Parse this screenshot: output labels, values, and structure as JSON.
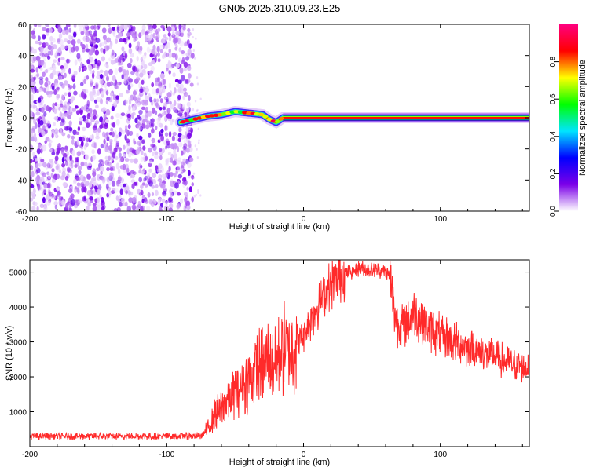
{
  "chart_data": [
    {
      "type": "heatmap",
      "title": "GN05.2025.310.09.23.E25",
      "xlabel": "Height of straight line (km)",
      "ylabel": "Frequency (Hz)",
      "xlim": [
        -200,
        165
      ],
      "ylim": [
        -60,
        60
      ],
      "x_ticks": [
        -200,
        -100,
        0,
        100
      ],
      "x_tick_labels": [
        "-200",
        "-100",
        "0",
        "100"
      ],
      "y_ticks": [
        -60,
        -40,
        -20,
        0,
        20,
        40,
        60
      ],
      "y_tick_labels": [
        "-60",
        "-40",
        "-20",
        "0",
        "20",
        "40",
        "60"
      ],
      "noise_region_x": [
        -200,
        -81
      ],
      "signal_track": {
        "x": [
          -90,
          -80,
          -70,
          -60,
          -50,
          -40,
          -30,
          -25,
          -20,
          -15,
          0,
          50,
          100,
          165
        ],
        "freq": [
          -3,
          -1,
          1,
          2,
          4,
          3,
          2,
          -1,
          -3,
          0,
          0,
          0,
          0,
          0
        ]
      },
      "colorbar": {
        "label": "Normalized spectral amplitude",
        "range": [
          0,
          1
        ],
        "ticks": [
          0.0,
          0.2,
          0.4,
          0.6,
          0.8
        ],
        "tick_labels": [
          "0.0",
          "0.2",
          "0.4",
          "0.6",
          "0.8"
        ],
        "colors": [
          "#ffffff",
          "#7b00e8",
          "#0000ff",
          "#00e5ff",
          "#00ff00",
          "#ffff00",
          "#ff0000",
          "#ff007f"
        ]
      }
    },
    {
      "type": "line",
      "xlabel": "Height of straight line (km)",
      "ylabel": "SNR (10 * v/v)",
      "xlim": [
        -200,
        165
      ],
      "ylim": [
        0,
        5350
      ],
      "x_ticks": [
        -200,
        -100,
        0,
        100
      ],
      "x_tick_labels": [
        "-200",
        "-100",
        "0",
        "100"
      ],
      "y_ticks": [
        1000,
        2000,
        3000,
        4000,
        5000
      ],
      "y_tick_labels": [
        "1000",
        "2000",
        "3000",
        "4000",
        "5000"
      ],
      "series": [
        {
          "name": "SNR",
          "color": "#ff2a2a",
          "x": [
            -200,
            -150,
            -100,
            -75,
            -70,
            -65,
            -60,
            -55,
            -50,
            -45,
            -40,
            -35,
            -30,
            -25,
            -20,
            -15,
            -10,
            -5,
            0,
            5,
            10,
            15,
            20,
            25,
            30,
            35,
            40,
            45,
            50,
            55,
            60,
            63,
            65,
            68,
            70,
            75,
            80,
            85,
            90,
            95,
            100,
            110,
            120,
            130,
            140,
            150,
            160,
            165
          ],
          "y": [
            300,
            300,
            300,
            310,
            500,
            900,
            1100,
            1400,
            1600,
            1700,
            1900,
            2200,
            2300,
            2500,
            2500,
            2700,
            2900,
            3000,
            3200,
            3600,
            4000,
            4300,
            4600,
            4800,
            5000,
            5000,
            5100,
            5100,
            5050,
            5050,
            5000,
            4900,
            4200,
            3600,
            3500,
            3500,
            3800,
            3700,
            3500,
            3300,
            3200,
            3000,
            2850,
            2700,
            2550,
            2400,
            2300,
            2250
          ]
        }
      ]
    }
  ]
}
